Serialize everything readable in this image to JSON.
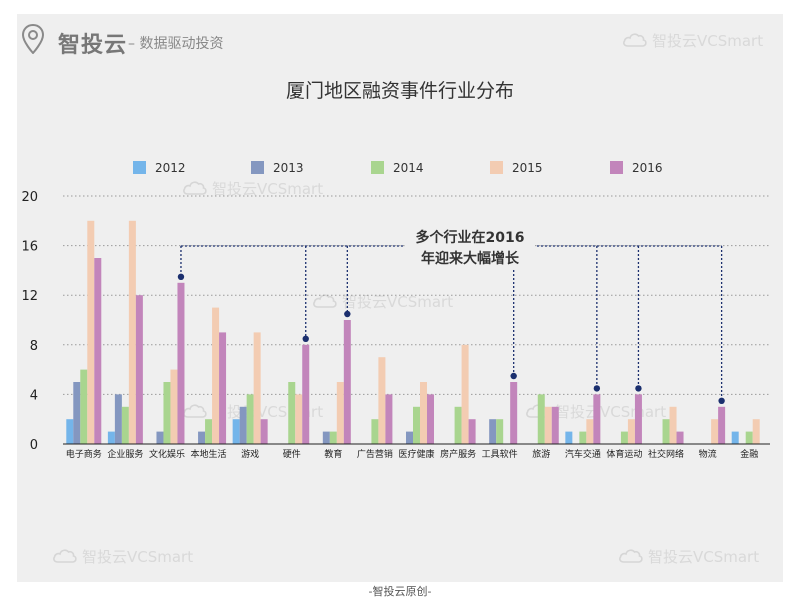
{
  "header": {
    "logo_text": "智投云",
    "logo_sub": "– 数据驱动投资",
    "pin_icon": "location-pin-icon"
  },
  "watermark": "智投云VCSmart",
  "footer": "-智投云原创-",
  "colors": {
    "2012": "#74b5ea",
    "2013": "#8497c0",
    "2014": "#a9d58f",
    "2015": "#f3ccb2",
    "2016": "#c285bb",
    "annotation": "#1b2f6e"
  },
  "chart_data": {
    "type": "bar",
    "title": "厦门地区融资事件行业分布",
    "ylim": [
      0,
      20
    ],
    "yticks": [
      0,
      4,
      8,
      12,
      16,
      20
    ],
    "grid": true,
    "legend_position": "top",
    "categories": [
      "电子商务",
      "企业服务",
      "文化娱乐",
      "本地生活",
      "游戏",
      "硬件",
      "教育",
      "广告营销",
      "医疗健康",
      "房产服务",
      "工具软件",
      "旅游",
      "汽车交通",
      "体育运动",
      "社交网络",
      "物流",
      "金融"
    ],
    "series": [
      {
        "name": "2012",
        "values": [
          2,
          1,
          0,
          0,
          2,
          0,
          0,
          0,
          0,
          0,
          0,
          0,
          1,
          0,
          0,
          0,
          1
        ]
      },
      {
        "name": "2013",
        "values": [
          5,
          4,
          1,
          1,
          3,
          0,
          1,
          0,
          1,
          0,
          2,
          0,
          0,
          0,
          0,
          0,
          0
        ]
      },
      {
        "name": "2014",
        "values": [
          6,
          3,
          5,
          2,
          4,
          5,
          1,
          2,
          3,
          3,
          2,
          4,
          1,
          1,
          2,
          0,
          1
        ]
      },
      {
        "name": "2015",
        "values": [
          18,
          18,
          6,
          11,
          9,
          4,
          5,
          7,
          5,
          8,
          0,
          3,
          2,
          2,
          3,
          2,
          2
        ]
      },
      {
        "name": "2016",
        "values": [
          15,
          12,
          13,
          9,
          2,
          8,
          10,
          4,
          4,
          2,
          5,
          3,
          4,
          4,
          1,
          3,
          0
        ]
      }
    ],
    "annotation": {
      "lines": [
        "多个行业在2016",
        "年迎来大幅增长"
      ],
      "highlighted_categories": [
        "文化娱乐",
        "硬件",
        "教育",
        "工具软件",
        "汽车交通",
        "体育运动",
        "物流"
      ]
    }
  }
}
